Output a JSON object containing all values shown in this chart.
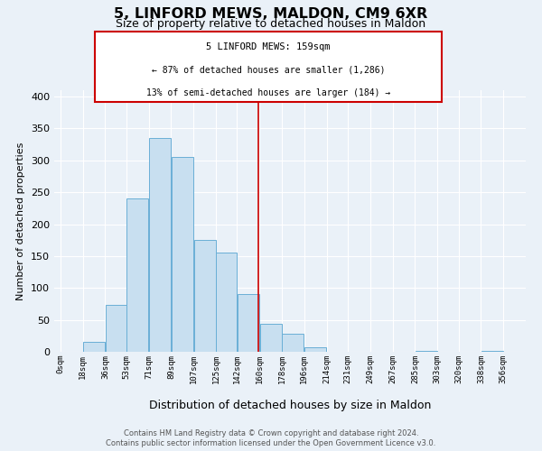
{
  "title": "5, LINFORD MEWS, MALDON, CM9 6XR",
  "subtitle": "Size of property relative to detached houses in Maldon",
  "xlabel": "Distribution of detached houses by size in Maldon",
  "ylabel": "Number of detached properties",
  "bar_left_edges": [
    0,
    18,
    36,
    53,
    71,
    89,
    107,
    125,
    142,
    160,
    178,
    196,
    214,
    231,
    249,
    267,
    285,
    303,
    320,
    338
  ],
  "bar_widths": [
    18,
    18,
    17,
    18,
    18,
    18,
    18,
    17,
    18,
    18,
    18,
    18,
    17,
    18,
    18,
    18,
    18,
    17,
    18,
    18
  ],
  "bar_heights": [
    0,
    16,
    73,
    240,
    335,
    305,
    175,
    155,
    90,
    44,
    28,
    7,
    0,
    0,
    0,
    0,
    2,
    0,
    0,
    2
  ],
  "tick_labels": [
    "0sqm",
    "18sqm",
    "36sqm",
    "53sqm",
    "71sqm",
    "89sqm",
    "107sqm",
    "125sqm",
    "142sqm",
    "160sqm",
    "178sqm",
    "196sqm",
    "214sqm",
    "231sqm",
    "249sqm",
    "267sqm",
    "285sqm",
    "303sqm",
    "320sqm",
    "338sqm",
    "356sqm"
  ],
  "tick_positions": [
    0,
    18,
    36,
    53,
    71,
    89,
    107,
    125,
    142,
    160,
    178,
    196,
    214,
    231,
    249,
    267,
    285,
    303,
    320,
    338,
    356
  ],
  "bar_color": "#c8dff0",
  "bar_edge_color": "#6aafd6",
  "vline_x": 159,
  "vline_color": "#cc0000",
  "annotation_title": "5 LINFORD MEWS: 159sqm",
  "annotation_line1": "← 87% of detached houses are smaller (1,286)",
  "annotation_line2": "13% of semi-detached houses are larger (184) →",
  "annotation_box_color": "#ffffff",
  "annotation_box_edge": "#cc0000",
  "ylim": [
    0,
    410
  ],
  "xlim": [
    -5,
    374
  ],
  "footer_line1": "Contains HM Land Registry data © Crown copyright and database right 2024.",
  "footer_line2": "Contains public sector information licensed under the Open Government Licence v3.0.",
  "bg_color": "#eaf1f8",
  "plot_bg_color": "#eaf1f8",
  "grid_color": "#ffffff",
  "title_fontsize": 11.5,
  "subtitle_fontsize": 9,
  "ylabel_fontsize": 8,
  "xlabel_fontsize": 9,
  "tick_fontsize": 6.5,
  "footer_fontsize": 6,
  "ann_fontsize_title": 7.5,
  "ann_fontsize_lines": 7
}
